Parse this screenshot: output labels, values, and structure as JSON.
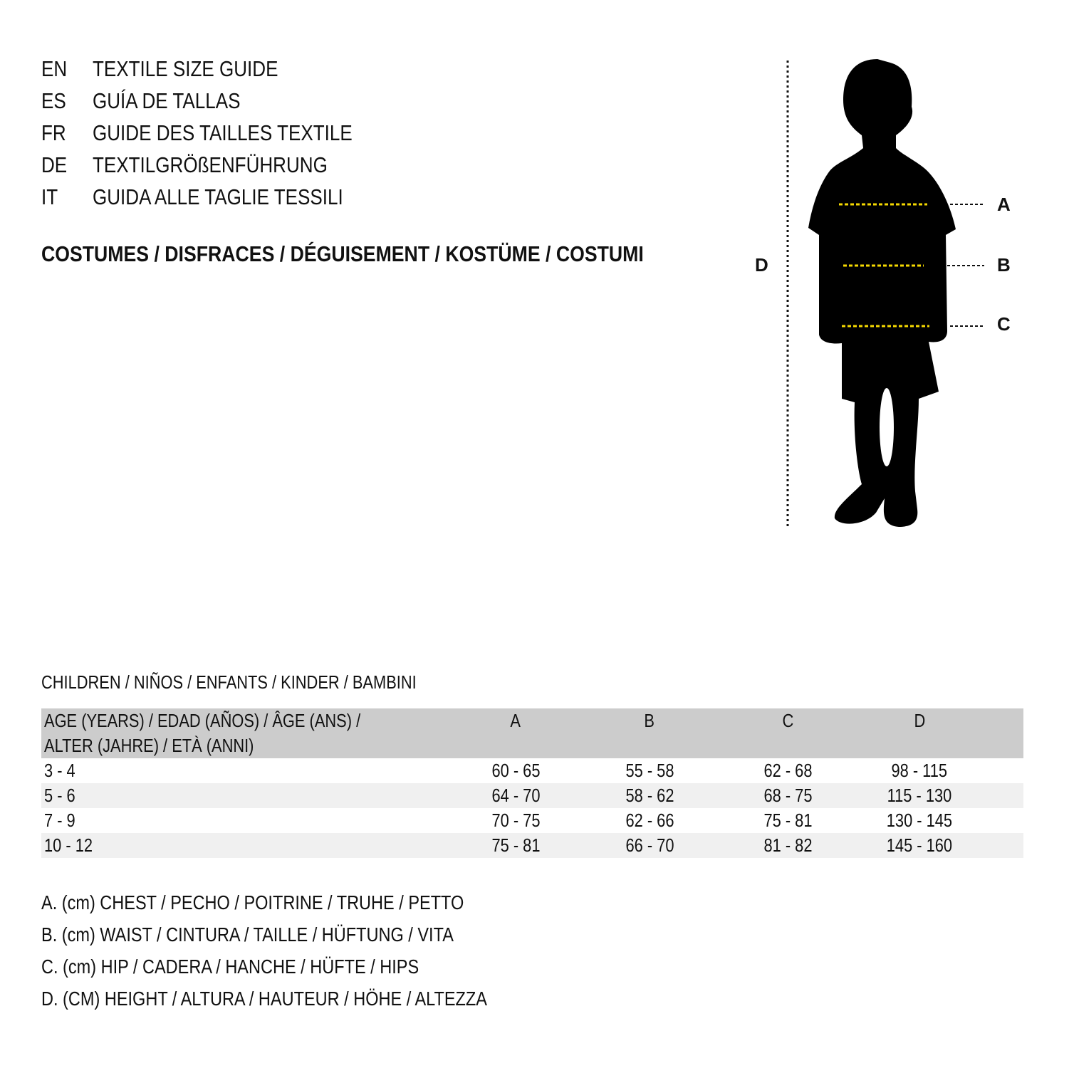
{
  "guide_titles": [
    {
      "code": "EN",
      "text": "TEXTILE SIZE GUIDE"
    },
    {
      "code": "ES",
      "text": "GUÍA DE TALLAS"
    },
    {
      "code": "FR",
      "text": "GUIDE DES TAILLES TEXTILE"
    },
    {
      "code": "DE",
      "text": "TEXTILGRÖßENFÜHRUNG"
    },
    {
      "code": "IT",
      "text": "GUIDA ALLE TAGLIE TESSILI"
    }
  ],
  "category": "COSTUMES / DISFRACES / DÉGUISEMENT / KOSTÜME / COSTUMI",
  "figure": {
    "labels": {
      "a": "A",
      "b": "B",
      "c": "C",
      "d": "D"
    },
    "measure_line_color": "#f5d800",
    "icon": "child-silhouette"
  },
  "table": {
    "title": "CHILDREN / NIÑOS / ENFANTS / KINDER / BAMBINI",
    "header": {
      "age_line1": "AGE (YEARS) / EDAD (AÑOS) / ÂGE (ANS) /",
      "age_line2": "ALTER (JAHRE) / ETÀ (ANNI)",
      "a": "A",
      "b": "B",
      "c": "C",
      "d": "D"
    },
    "rows": [
      {
        "age": "3 - 4",
        "a": "60 - 65",
        "b": "55 - 58",
        "c": "62 - 68",
        "d": "98 - 115"
      },
      {
        "age": "5 - 6",
        "a": "64 - 70",
        "b": "58 - 62",
        "c": "68 - 75",
        "d": "115 - 130"
      },
      {
        "age": "7 - 9",
        "a": "70 - 75",
        "b": "62 - 66",
        "c": "75 - 81",
        "d": "130 - 145"
      },
      {
        "age": "10 - 12",
        "a": "75 - 81",
        "b": "66 - 70",
        "c": "81 - 82",
        "d": "145 - 160"
      }
    ]
  },
  "legend": [
    "A. (cm) CHEST / PECHO / POITRINE / TRUHE / PETTO",
    "B. (cm) WAIST / CINTURA / TAILLE / HÜFTUNG / VITA",
    "C. (cm) HIP / CADERA / HANCHE / HÜFTE / HIPS",
    "D. (CM) HEIGHT / ALTURA / HAUTEUR / HÖHE / ALTEZZA"
  ]
}
